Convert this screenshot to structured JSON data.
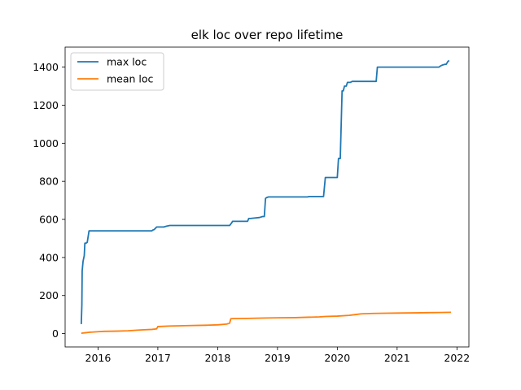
{
  "chart_data": {
    "type": "line",
    "title": "elk loc over repo lifetime",
    "xlabel": "",
    "ylabel": "",
    "xlim": [
      2015.45,
      2022.2
    ],
    "ylim": [
      -70,
      1505
    ],
    "x_ticks": [
      2016,
      2017,
      2018,
      2019,
      2020,
      2021,
      2022
    ],
    "x_tick_labels": [
      "2016",
      "2017",
      "2018",
      "2019",
      "2020",
      "2021",
      "2022"
    ],
    "y_ticks": [
      0,
      200,
      400,
      600,
      800,
      1000,
      1200,
      1400
    ],
    "y_tick_labels": [
      "0",
      "200",
      "400",
      "600",
      "800",
      "1000",
      "1200",
      "1400"
    ],
    "grid": false,
    "legend_position": "top-left",
    "series": [
      {
        "name": "max loc",
        "color": "#1f77b4",
        "x": [
          2015.72,
          2015.73,
          2015.735,
          2015.75,
          2015.77,
          2015.78,
          2015.8,
          2015.82,
          2015.82,
          2015.84,
          2015.85,
          2015.86,
          2015.86,
          2016.5,
          2016.9,
          2016.92,
          2016.93,
          2016.95,
          2016.98,
          2017.0,
          2017.1,
          2017.15,
          2017.2,
          2017.3,
          2017.5,
          2017.8,
          2018.0,
          2018.2,
          2018.23,
          2018.25,
          2018.3,
          2018.5,
          2018.52,
          2018.55,
          2018.7,
          2018.75,
          2018.78,
          2018.8,
          2018.82,
          2018.85,
          2018.9,
          2019.2,
          2019.5,
          2019.53,
          2019.6,
          2019.75,
          2019.77,
          2019.8,
          2019.9,
          2020.0,
          2020.02,
          2020.05,
          2020.08,
          2020.1,
          2020.12,
          2020.15,
          2020.17,
          2020.2,
          2020.22,
          2020.25,
          2020.3,
          2020.35,
          2020.38,
          2020.5,
          2020.65,
          2020.67,
          2020.7,
          2020.9,
          2021.2,
          2021.5,
          2021.7,
          2021.72,
          2021.75,
          2021.8,
          2021.82,
          2021.85,
          2021.87
        ],
        "values": [
          50,
          150,
          330,
          380,
          410,
          475,
          475,
          480,
          480,
          520,
          540,
          540,
          540,
          540,
          540,
          545,
          545,
          550,
          560,
          560,
          560,
          565,
          568,
          568,
          568,
          568,
          568,
          568,
          580,
          590,
          590,
          590,
          605,
          605,
          610,
          615,
          615,
          710,
          715,
          718,
          718,
          718,
          718,
          720,
          720,
          720,
          720,
          820,
          820,
          820,
          920,
          920,
          1275,
          1275,
          1300,
          1300,
          1320,
          1320,
          1320,
          1325,
          1325,
          1325,
          1325,
          1325,
          1325,
          1400,
          1400,
          1400,
          1400,
          1400,
          1400,
          1405,
          1410,
          1415,
          1415,
          1430,
          1435
        ]
      },
      {
        "name": "mean loc",
        "color": "#ff7f0e",
        "x": [
          2015.72,
          2015.8,
          2015.85,
          2015.9,
          2016.0,
          2016.1,
          2016.3,
          2016.5,
          2016.7,
          2016.9,
          2016.98,
          2017.0,
          2017.2,
          2017.5,
          2017.8,
          2018.0,
          2018.15,
          2018.2,
          2018.22,
          2018.25,
          2018.5,
          2018.8,
          2019.0,
          2019.3,
          2019.5,
          2019.7,
          2019.8,
          2020.0,
          2020.2,
          2020.3,
          2020.4,
          2020.6,
          2020.8,
          2021.0,
          2021.3,
          2021.5,
          2021.7,
          2021.9
        ],
        "values": [
          2,
          5,
          7,
          8,
          10,
          12,
          13,
          15,
          19,
          22,
          25,
          37,
          40,
          42,
          44,
          46,
          50,
          55,
          78,
          79,
          80,
          82,
          83,
          84,
          86,
          88,
          90,
          92,
          96,
          100,
          104,
          106,
          107,
          108,
          109,
          110,
          111,
          112
        ]
      }
    ]
  }
}
